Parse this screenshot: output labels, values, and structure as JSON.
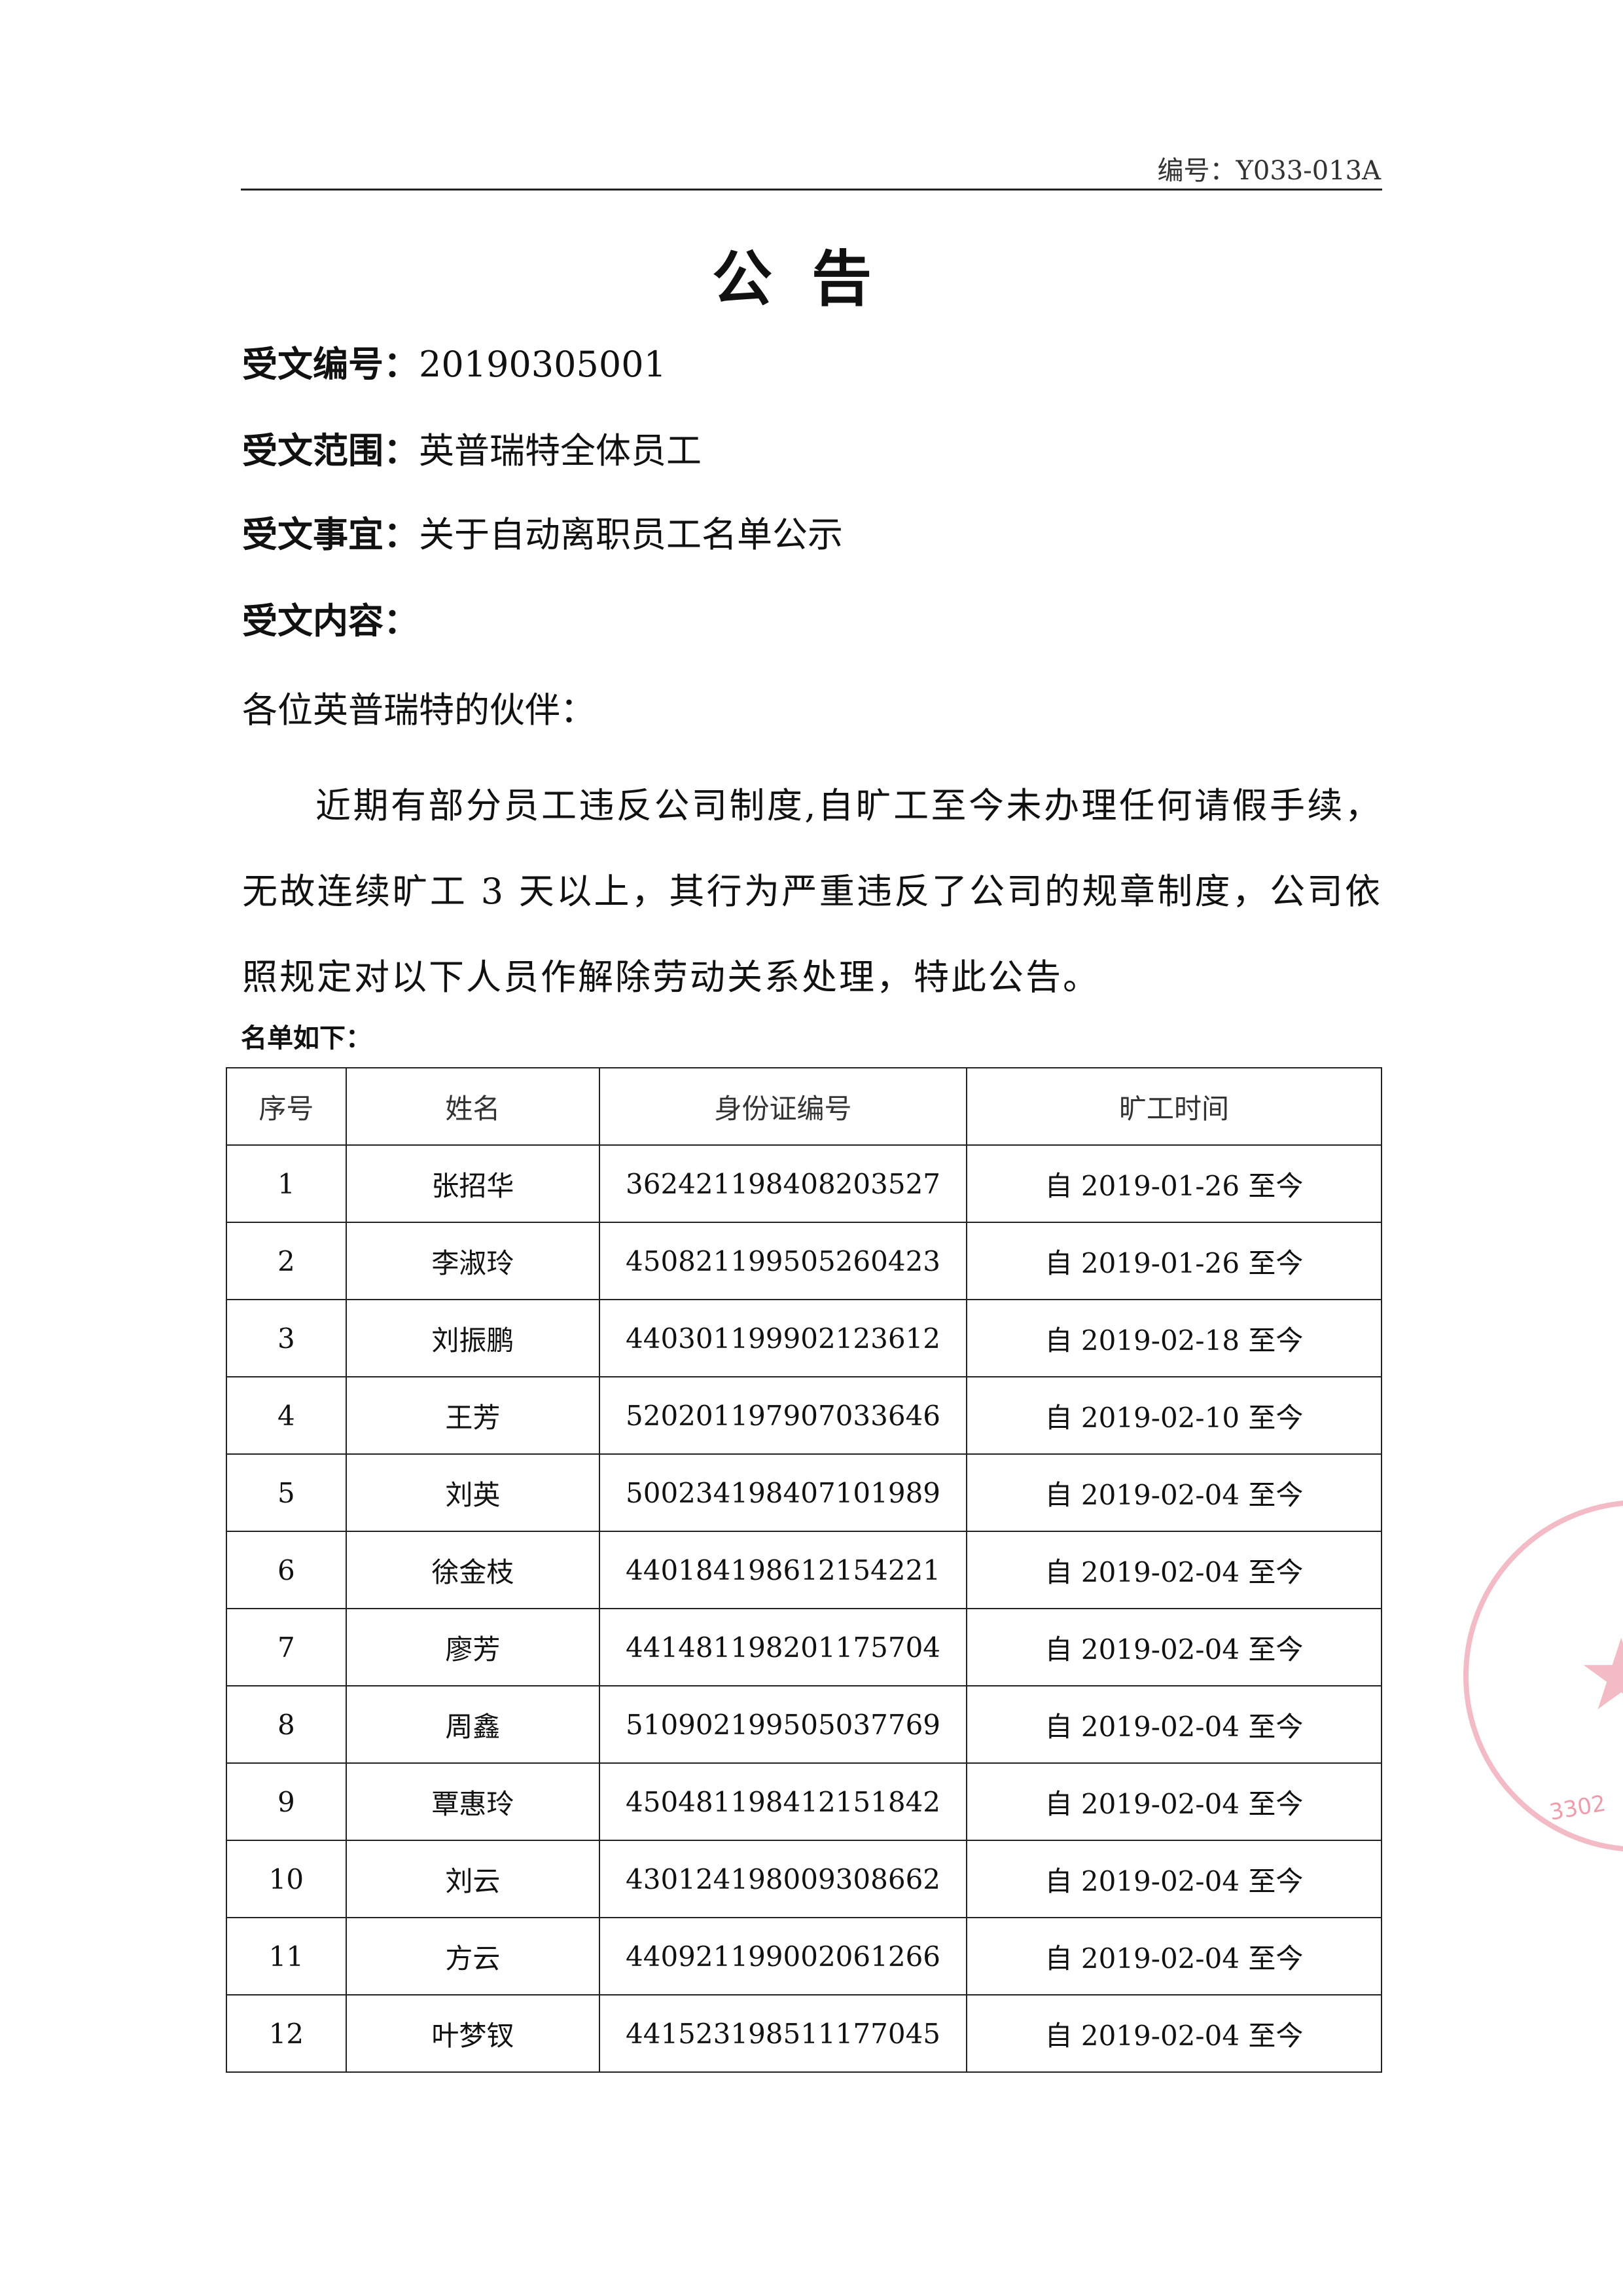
{
  "header": {
    "doc_number": "编号：Y033-013A"
  },
  "title": "公告",
  "fields": [
    {
      "label": "受文编号：",
      "value": "20190305001"
    },
    {
      "label": "受文范围：",
      "value": "英普瑞特全体员工"
    },
    {
      "label": "受文事宜：",
      "value": "关于自动离职员工名单公示"
    },
    {
      "label": "受文内容：",
      "value": ""
    }
  ],
  "greeting": "各位英普瑞特的伙伴：",
  "body": "近期有部分员工违反公司制度,自旷工至今未办理任何请假手续，无故连续旷工 3 天以上，其行为严重违反了公司的规章制度，公司依照规定对以下人员作解除劳动关系处理，特此公告。",
  "list_label": "名单如下：",
  "table": {
    "headers": [
      "序号",
      "姓名",
      "身份证编号",
      "旷工时间"
    ],
    "rows": [
      [
        "1",
        "张招华",
        "362421198408203527",
        "自 2019-01-26 至今"
      ],
      [
        "2",
        "李淑玲",
        "450821199505260423",
        "自 2019-01-26 至今"
      ],
      [
        "3",
        "刘振鹏",
        "440301199902123612",
        "自 2019-02-18 至今"
      ],
      [
        "4",
        "王芳",
        "520201197907033646",
        "自 2019-02-10 至今"
      ],
      [
        "5",
        "刘英",
        "500234198407101989",
        "自 2019-02-04 至今"
      ],
      [
        "6",
        "徐金枝",
        "440184198612154221",
        "自 2019-02-04 至今"
      ],
      [
        "7",
        "廖芳",
        "441481198201175704",
        "自 2019-02-04 至今"
      ],
      [
        "8",
        "周鑫",
        "510902199505037769",
        "自 2019-02-04 至今"
      ],
      [
        "9",
        "覃惠玲",
        "450481198412151842",
        "自 2019-02-04 至今"
      ],
      [
        "10",
        "刘云",
        "430124198009308662",
        "自 2019-02-04 至今"
      ],
      [
        "11",
        "方云",
        "440921199002061266",
        "自 2019-02-04 至今"
      ],
      [
        "12",
        "叶梦钗",
        "441523198511177045",
        "自 2019-02-04 至今"
      ]
    ]
  },
  "stamp": {
    "text": "3302",
    "color": "#dc3c5a"
  }
}
